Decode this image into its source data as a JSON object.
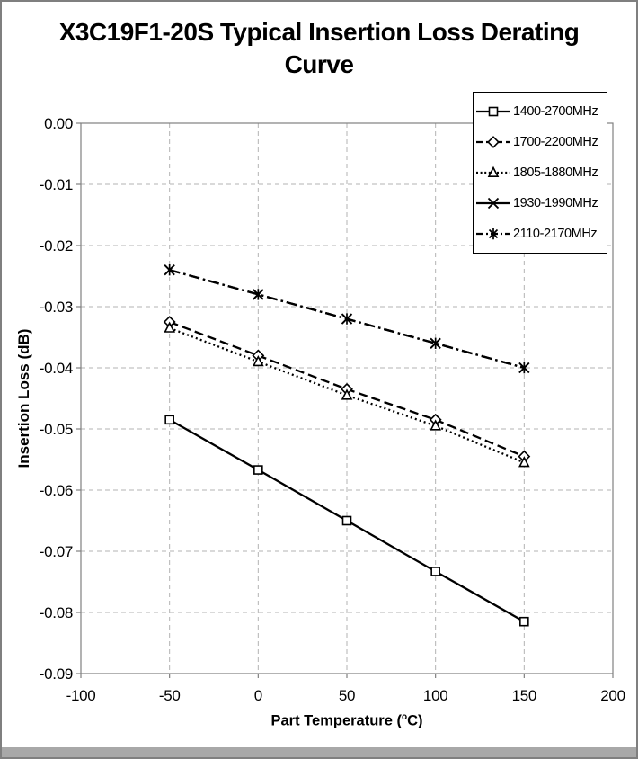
{
  "colors": {
    "series_line": "#000000",
    "grid": "#b3b3b3",
    "axis": "#808080",
    "frame_border": "#7f7f7f",
    "bottom_bar": "#a8a8a8",
    "legend_border": "#000000",
    "background": "#ffffff",
    "text": "#000000"
  },
  "chart_data": {
    "type": "line",
    "title": "X3C19F1-20S Typical Insertion Loss Derating Curve",
    "title_lines": [
      "X3C19F1-20S Typical Insertion Loss Derating",
      "Curve"
    ],
    "ylabel": "Insertion Loss (dB)",
    "xlabel_prefix": "Part Temperature (",
    "xlabel_sup": "o",
    "xlabel_suffix": "C)",
    "xlim": [
      -100,
      200
    ],
    "ylim": [
      -0.09,
      0
    ],
    "x_ticks": [
      -100,
      -50,
      0,
      50,
      100,
      150,
      200
    ],
    "x_tick_labels": [
      "-100",
      "-50",
      "0",
      "50",
      "100",
      "150",
      "200"
    ],
    "y_tick_values": [
      0,
      -0.01,
      -0.02,
      -0.03,
      -0.04,
      -0.05,
      -0.06,
      -0.07,
      -0.08,
      -0.09
    ],
    "y_tick_labels": [
      "0.00",
      "-0.01",
      "-0.02",
      "-0.03",
      "-0.04",
      "-0.05",
      "-0.06",
      "-0.07",
      "-0.08",
      "-0.09"
    ],
    "grid": true,
    "legend_position": "top-right",
    "x": [
      -50,
      0,
      50,
      100,
      150
    ],
    "series": [
      {
        "name": "1400-2700MHz",
        "marker": "square",
        "line": "solid",
        "values": [
          -0.0485,
          -0.0567,
          -0.065,
          -0.0733,
          -0.0815
        ]
      },
      {
        "name": "1700-2200MHz",
        "marker": "diamond",
        "line": "dashed",
        "values": [
          -0.0325,
          -0.038,
          -0.0435,
          -0.0485,
          -0.0545
        ]
      },
      {
        "name": "1805-1880MHz",
        "marker": "triangle",
        "line": "dotted",
        "values": [
          -0.0335,
          -0.039,
          -0.0445,
          -0.0495,
          -0.0555
        ]
      },
      {
        "name": "1930-1990MHz",
        "marker": "x",
        "line": "solid",
        "plot_line": "dashdot",
        "values": [
          -0.024,
          -0.028,
          -0.032,
          -0.036,
          -0.04
        ]
      },
      {
        "name": "2110-2170MHz",
        "marker": "asterisk",
        "line": "dashdot",
        "values": [
          -0.024,
          -0.028,
          -0.032,
          -0.036,
          -0.04
        ]
      }
    ]
  }
}
